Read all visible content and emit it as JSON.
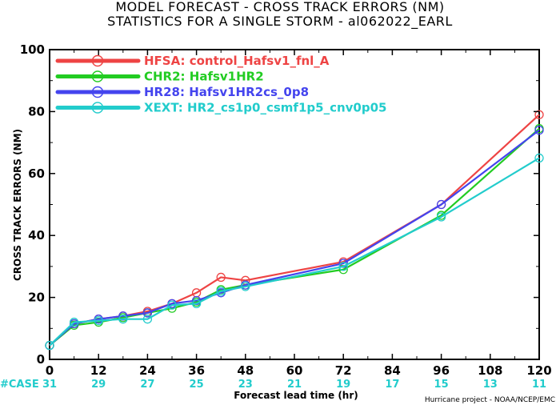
{
  "title": {
    "line1": "MODEL FORECAST - CROSS TRACK ERRORS (NM)",
    "line2": "STATISTICS FOR A SINGLE STORM - al062022_EARL"
  },
  "credit": "Hurricane project - NOAA/NCEP/EMC",
  "cases_label": "#CASE",
  "chart_data": {
    "type": "line",
    "title": "MODEL FORECAST - CROSS TRACK ERRORS (NM)",
    "subtitle": "STATISTICS FOR A SINGLE STORM - al062022_EARL",
    "xlabel": "Forecast lead time (hr)",
    "ylabel": "CROSS TRACK ERRORS (NM)",
    "xlim": [
      0,
      120
    ],
    "ylim": [
      0,
      100
    ],
    "xticks": [
      0,
      12,
      24,
      36,
      48,
      60,
      72,
      84,
      96,
      108,
      120
    ],
    "yticks": [
      0,
      20,
      40,
      60,
      80,
      100
    ],
    "grid": false,
    "legend_position": "top-left",
    "cases": {
      "x": [
        0,
        12,
        24,
        36,
        48,
        60,
        72,
        84,
        96,
        108,
        120
      ],
      "counts": [
        "31",
        "29",
        "27",
        "25",
        "23",
        "21",
        "19",
        "17",
        "15",
        "13",
        "11"
      ]
    },
    "series": [
      {
        "name": "HFSA: control_Hafsv1_fnl_A",
        "color": "#ee4444",
        "x": [
          0,
          6,
          12,
          18,
          24,
          30,
          36,
          42,
          48,
          72,
          96,
          120
        ],
        "y": [
          4.5,
          11.5,
          13,
          14,
          15.5,
          18,
          21.5,
          26.5,
          25.5,
          31.5,
          50,
          79
        ]
      },
      {
        "name": "CHR2: Hafsv1HR2",
        "color": "#22cc22",
        "x": [
          0,
          6,
          12,
          18,
          24,
          30,
          36,
          42,
          48,
          72,
          96,
          120
        ],
        "y": [
          4.5,
          11,
          12,
          13.5,
          15,
          16.5,
          18.5,
          22.5,
          24,
          29,
          46.5,
          74.5
        ]
      },
      {
        "name": "HR28: Hafsv1HR2cs_0p8",
        "color": "#4444ee",
        "x": [
          0,
          6,
          12,
          18,
          24,
          30,
          36,
          42,
          48,
          72,
          96,
          120
        ],
        "y": [
          4.5,
          11.5,
          13,
          14,
          15,
          18,
          19,
          21.5,
          24,
          31,
          50,
          74
        ]
      },
      {
        "name": "XEXT: HR2_cs1p0_csmf1p5_cnv0p05",
        "color": "#22cccc",
        "x": [
          0,
          6,
          12,
          18,
          24,
          30,
          36,
          42,
          48,
          72,
          96,
          120
        ],
        "y": [
          4.5,
          12,
          12.5,
          13,
          13,
          17.5,
          18,
          22,
          23.5,
          30,
          46,
          65
        ]
      }
    ]
  }
}
